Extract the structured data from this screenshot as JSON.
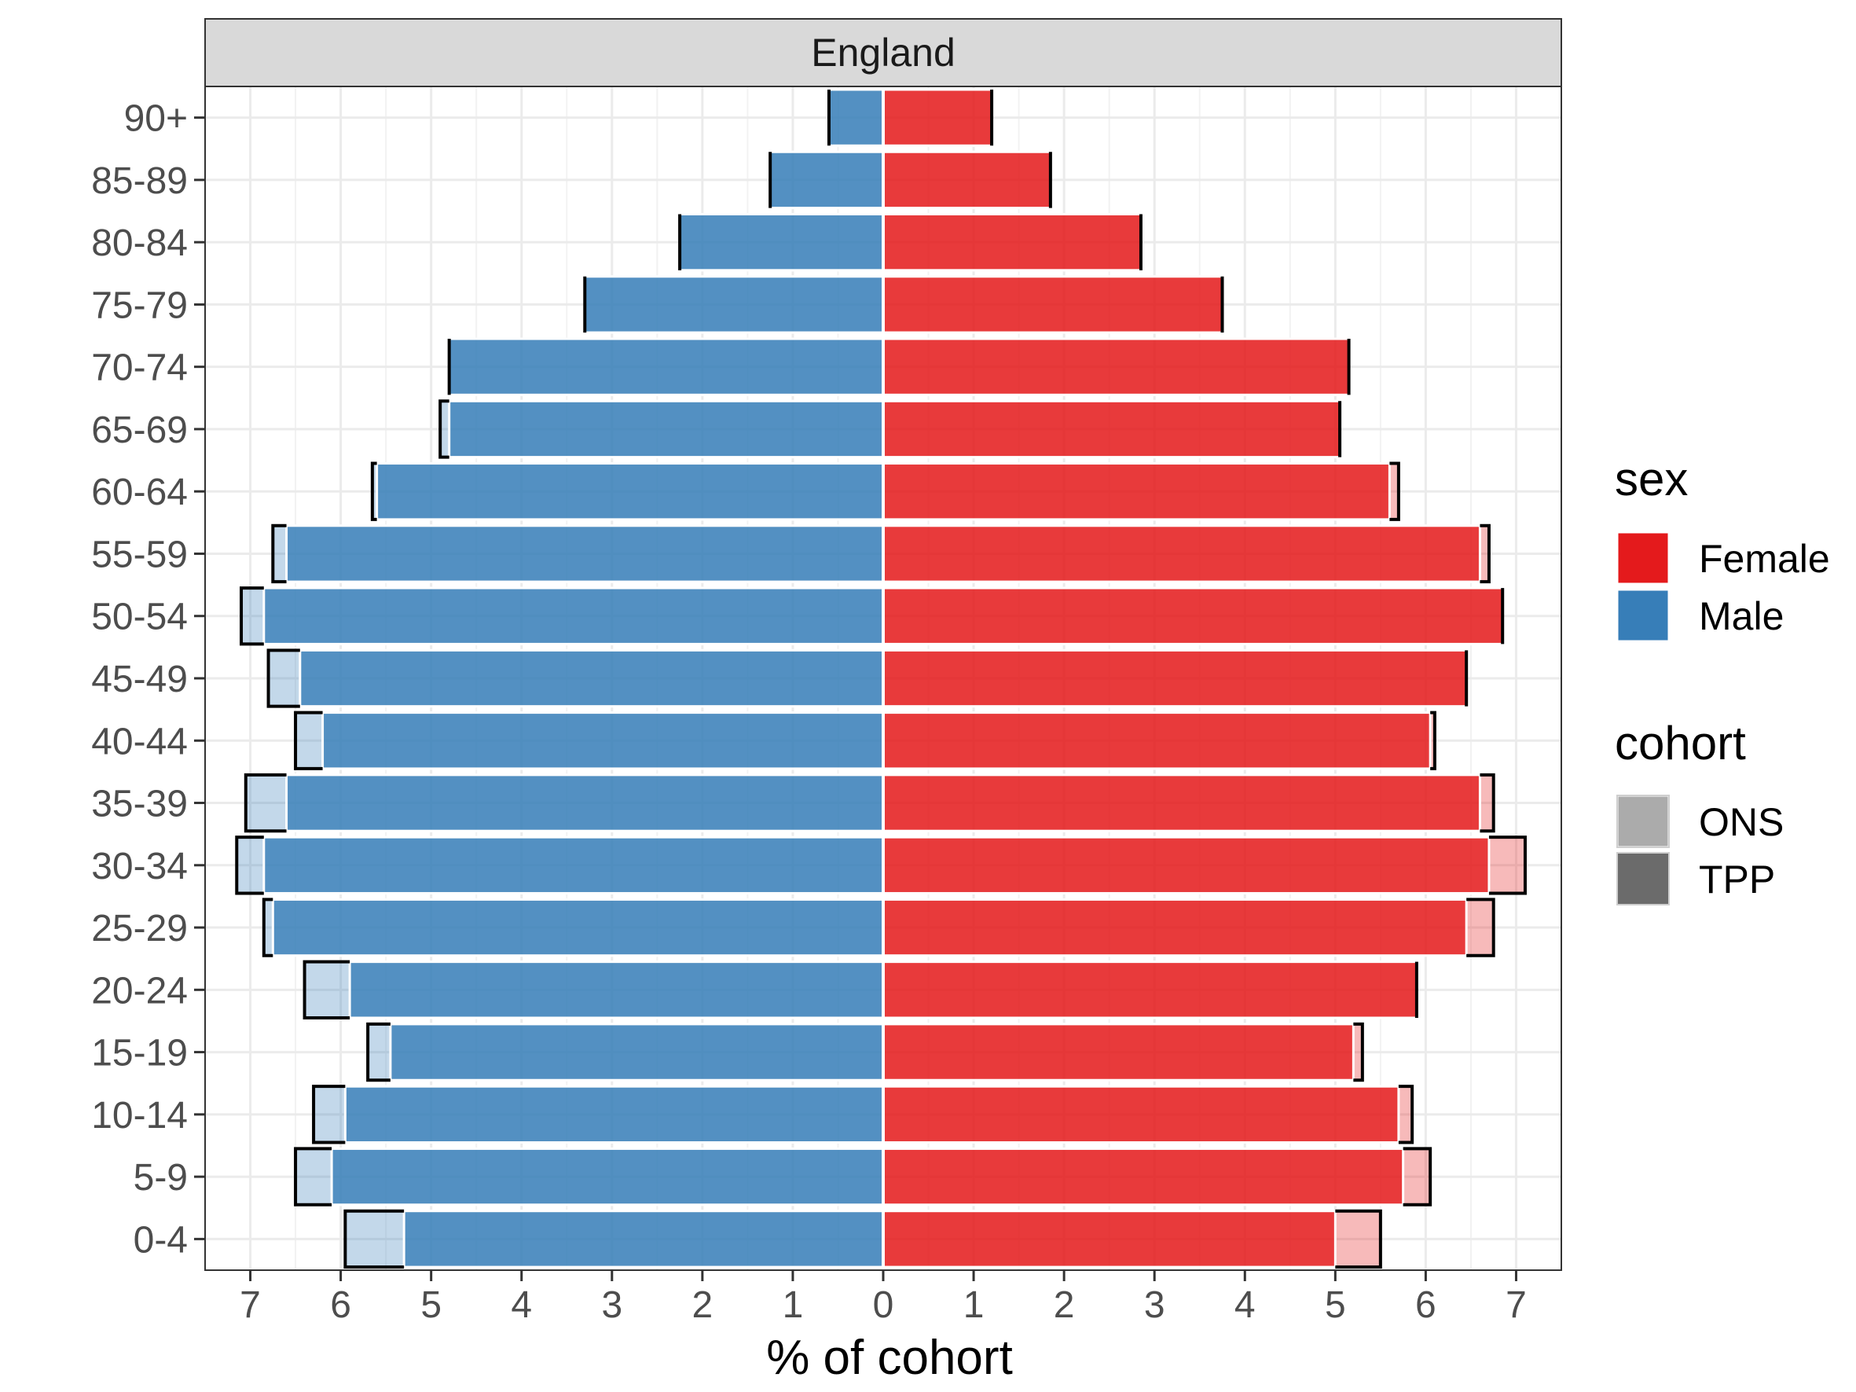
{
  "chart_data": {
    "type": "bar",
    "subtype": "population-pyramid",
    "panel_title": "England",
    "xlabel": "% of cohort",
    "ylabel": "",
    "xlim": [
      -7.5,
      7.5
    ],
    "x_ticks": [
      -7,
      -6,
      -5,
      -4,
      -3,
      -2,
      -1,
      0,
      1,
      2,
      3,
      4,
      5,
      6,
      7
    ],
    "x_tick_labels": [
      "7",
      "6",
      "5",
      "4",
      "3",
      "2",
      "1",
      "0",
      "1",
      "2",
      "3",
      "4",
      "5",
      "6",
      "7"
    ],
    "grid": true,
    "categories": [
      "0-4",
      "5-9",
      "10-14",
      "15-19",
      "20-24",
      "25-29",
      "30-34",
      "35-39",
      "40-44",
      "45-49",
      "50-54",
      "55-59",
      "60-64",
      "65-69",
      "70-74",
      "75-79",
      "80-84",
      "85-89",
      "90+"
    ],
    "series": [
      {
        "sex": "Male",
        "cohort": "TPP",
        "values": [
          5.3,
          6.1,
          5.95,
          5.45,
          5.9,
          6.75,
          6.85,
          6.6,
          6.2,
          6.45,
          6.85,
          6.6,
          5.6,
          4.8,
          4.8,
          3.3,
          2.25,
          1.25,
          0.6
        ]
      },
      {
        "sex": "Male",
        "cohort": "ONS",
        "values": [
          5.95,
          6.5,
          6.3,
          5.7,
          6.4,
          6.85,
          7.15,
          7.05,
          6.5,
          6.8,
          7.1,
          6.75,
          5.65,
          4.9,
          4.8,
          3.3,
          2.25,
          1.25,
          0.6
        ]
      },
      {
        "sex": "Female",
        "cohort": "TPP",
        "values": [
          5.0,
          5.75,
          5.7,
          5.2,
          5.9,
          6.45,
          6.7,
          6.6,
          6.05,
          6.45,
          6.85,
          6.6,
          5.6,
          5.05,
          5.15,
          3.75,
          2.85,
          1.85,
          1.2
        ]
      },
      {
        "sex": "Female",
        "cohort": "ONS",
        "values": [
          5.5,
          6.05,
          5.85,
          5.3,
          5.9,
          6.75,
          7.1,
          6.75,
          6.1,
          6.45,
          6.85,
          6.7,
          5.7,
          5.05,
          5.15,
          3.75,
          2.85,
          1.85,
          1.2
        ]
      }
    ],
    "legend": {
      "placement": "right",
      "groups": [
        {
          "title": "sex",
          "items": [
            {
              "label": "Female",
              "color": "#E41A1C"
            },
            {
              "label": "Male",
              "color": "#377EB8"
            }
          ]
        },
        {
          "title": "cohort",
          "items": [
            {
              "label": "ONS",
              "color": "#ABABAB"
            },
            {
              "label": "TPP",
              "color": "#6B6B6B"
            }
          ]
        }
      ]
    },
    "colors": {
      "Female": "#E41A1C",
      "Male": "#377EB8"
    }
  }
}
